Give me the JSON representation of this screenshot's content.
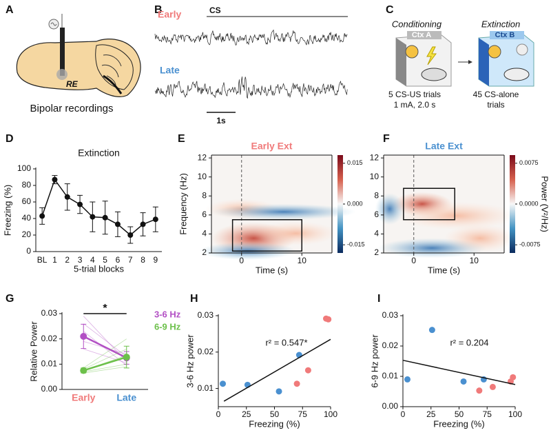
{
  "panel_labels": [
    "A",
    "B",
    "C",
    "D",
    "E",
    "F",
    "G",
    "H",
    "I"
  ],
  "panel_a": {
    "region": "RE",
    "caption": "Bipolar recordings"
  },
  "panel_b": {
    "early": "Early",
    "late": "Late",
    "stimulus": "CS",
    "scale_bar": "1s"
  },
  "panel_c": {
    "conditioning": {
      "title": "Conditioning",
      "context": "Ctx A",
      "caption": [
        "5 CS-US trials",
        "1 mA, 2.0 s"
      ]
    },
    "extinction": {
      "title": "Extinction",
      "context": "Ctx B",
      "caption": [
        "45 CS-alone",
        "trials"
      ]
    }
  },
  "chart_data": [
    {
      "type": "line",
      "title": "Extinction",
      "x_label": "5-trial blocks",
      "y_label": "Freezing (%)",
      "categories": [
        "BL",
        "1",
        "2",
        "3",
        "4",
        "5",
        "6",
        "7",
        "8",
        "9"
      ],
      "values": [
        43,
        87,
        66,
        57,
        42,
        41,
        33,
        20,
        33,
        39
      ],
      "errors": [
        10,
        5,
        16,
        11,
        18,
        20,
        15,
        10,
        14,
        15
      ],
      "color": "#111111",
      "ylim": [
        0,
        100
      ],
      "yticks": [
        0,
        20,
        40,
        60,
        80,
        100
      ]
    },
    {
      "type": "heatmap",
      "title": "Early Ext",
      "title_color": "#f07a7a",
      "x_label": "Time (s)",
      "y_label": "Frequency (Hz)",
      "xlim": [
        -5,
        15
      ],
      "xticks": [
        0,
        10
      ],
      "ylim": [
        2,
        12.3
      ],
      "yticks": [
        2,
        4,
        6,
        8,
        10,
        12
      ],
      "event_time": 0,
      "box": {
        "x": [
          -1.5,
          10
        ],
        "y": [
          2.2,
          5.5
        ]
      },
      "clim": [
        -0.018,
        0.018
      ],
      "cticks": [
        0.015,
        {
          "value": 0,
          "label": "0.000"
        },
        -0.015
      ]
    },
    {
      "type": "heatmap",
      "title": "Late Ext",
      "title_color": "#4a90d0",
      "x_label": "Time (s)",
      "xlim": [
        -5,
        15
      ],
      "xticks": [
        0,
        10
      ],
      "ylim": [
        2,
        12.3
      ],
      "yticks": [
        2,
        4,
        6,
        8,
        10,
        12
      ],
      "event_time": 0,
      "box": {
        "x": [
          -1.7,
          6.8
        ],
        "y": [
          5.5,
          8.8
        ]
      },
      "clim": [
        -0.009,
        0.009
      ],
      "cticks": [
        0.0075,
        {
          "value": 0,
          "label": "0.0000"
        },
        -0.0075
      ],
      "colorbar_label": "Power (V²/Hz)"
    },
    {
      "type": "line",
      "y_label": "Relative Power",
      "categories": [
        "Early",
        "Late"
      ],
      "category_colors": [
        "#f07a7a",
        "#4a90d0"
      ],
      "significance": "*",
      "series": [
        {
          "name": "3-6 Hz",
          "color": "#b24fc4",
          "values": [
            0.021,
            0.0125
          ],
          "errors": [
            0.0048,
            0.0025
          ],
          "individual": [
            [
              0.029,
              0.011
            ],
            [
              0.026,
              0.013
            ],
            [
              0.023,
              0.0095
            ],
            [
              0.019,
              0.014
            ],
            [
              0.016,
              0.0105
            ]
          ]
        },
        {
          "name": "6-9 Hz",
          "color": "#6cc04a",
          "values": [
            0.0075,
            0.0128
          ],
          "errors": [
            0.001,
            0.0043
          ],
          "individual": [
            [
              0.0085,
              0.02
            ],
            [
              0.008,
              0.016
            ],
            [
              0.0075,
              0.0135
            ],
            [
              0.007,
              0.01
            ],
            [
              0.0065,
              0.009
            ]
          ]
        }
      ],
      "ylim": [
        0,
        0.03
      ],
      "yticks": [
        {
          "value": 0,
          "label": "0.00"
        },
        0.01,
        0.02,
        0.03
      ]
    },
    {
      "type": "scatter",
      "x_label": "Freezing (%)",
      "y_label": "3-6 Hz power",
      "xlim": [
        0,
        100
      ],
      "xticks": [
        0,
        25,
        50,
        75,
        100
      ],
      "ylim": [
        0.005,
        0.03
      ],
      "yticks": [
        0.01,
        0.02,
        0.03
      ],
      "series": [
        {
          "color": "#4a90d0",
          "x": [
            4,
            26,
            54,
            72
          ],
          "values": [
            0.0113,
            0.011,
            0.0092,
            0.0192
          ]
        },
        {
          "color": "#f07a7a",
          "x": [
            70,
            80,
            96,
            98
          ],
          "values": [
            0.0113,
            0.015,
            0.0292,
            0.029
          ]
        }
      ],
      "fit": {
        "x": [
          5,
          100
        ],
        "y": [
          0.0065,
          0.0235
        ]
      },
      "annotation": "r² = 0.547*"
    },
    {
      "type": "scatter",
      "x_label": "Freezing (%)",
      "y_label": "6-9 Hz power",
      "xlim": [
        0,
        100
      ],
      "xticks": [
        0,
        25,
        50,
        75,
        100
      ],
      "ylim": [
        0,
        0.03
      ],
      "yticks": [
        {
          "value": 0,
          "label": "0.00"
        },
        0.01,
        0.02,
        0.03
      ],
      "series": [
        {
          "color": "#4a90d0",
          "x": [
            4,
            26,
            54,
            72
          ],
          "values": [
            0.009,
            0.0253,
            0.0083,
            0.009
          ]
        },
        {
          "color": "#f07a7a",
          "x": [
            68,
            80,
            96,
            98
          ],
          "values": [
            0.0053,
            0.0065,
            0.0083,
            0.0097
          ]
        }
      ],
      "fit": {
        "x": [
          0,
          100
        ],
        "y": [
          0.0153,
          0.0073
        ]
      },
      "annotation": "r² = 0.204"
    }
  ]
}
